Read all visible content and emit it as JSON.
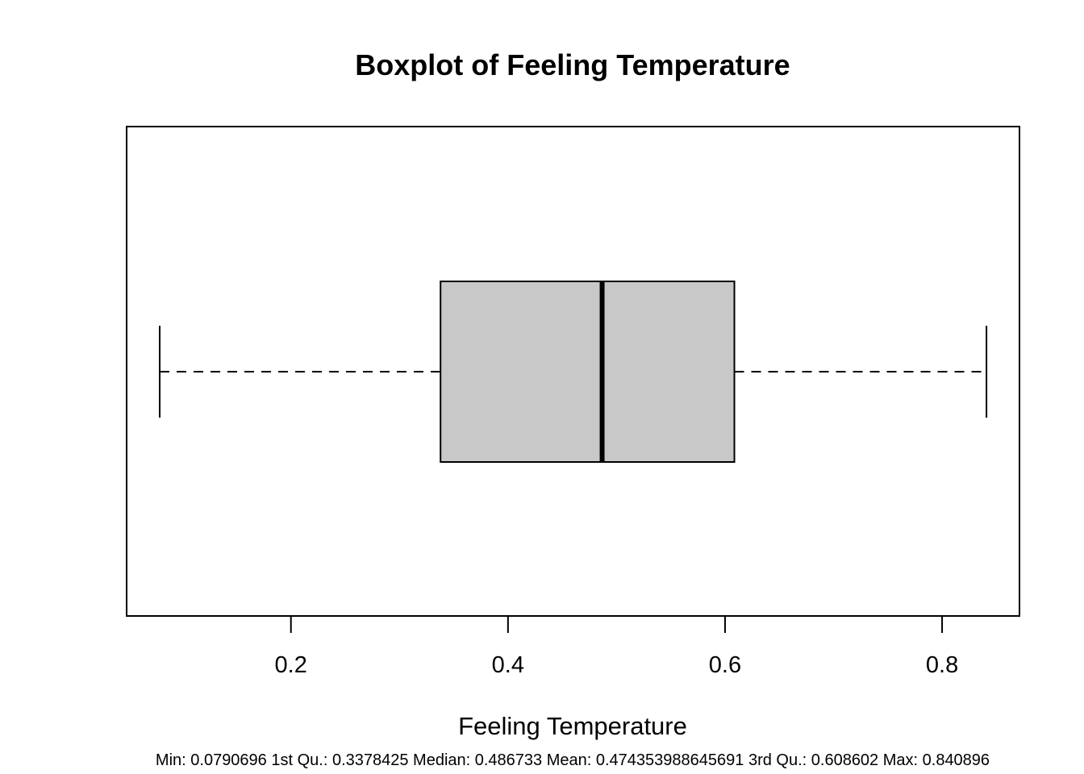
{
  "chart_data": {
    "type": "boxplot",
    "orientation": "horizontal",
    "title": "Boxplot of Feeling Temperature",
    "xlabel": "Feeling Temperature",
    "ylabel": "",
    "xlim": [
      0.0486,
      0.8713
    ],
    "x_ticks": [
      0.2,
      0.4,
      0.6,
      0.8
    ],
    "x_tick_labels": [
      "0.2",
      "0.4",
      "0.6",
      "0.8"
    ],
    "box": {
      "whisker_low": 0.0790696,
      "q1": 0.3378425,
      "median": 0.486733,
      "q3": 0.608602,
      "whisker_high": 0.840896
    },
    "box_fill": "#c8c8c8",
    "grid": false,
    "caption": "Min: 0.0790696 1st Qu.: 0.3378425 Median: 0.486733 Mean: 0.474353988645691 3rd Qu.: 0.608602 Max: 0.840896"
  }
}
